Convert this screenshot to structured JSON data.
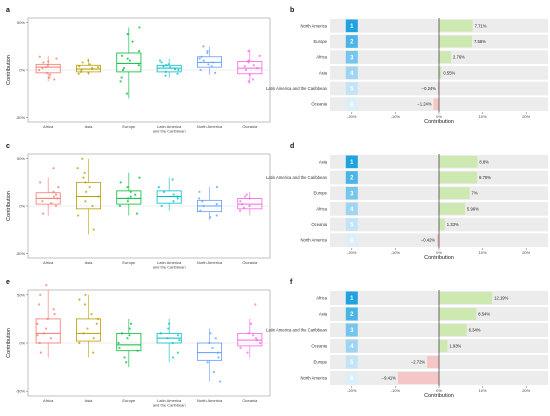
{
  "chart_data": [
    {
      "panel": "a",
      "type": "box",
      "ylabel": "Contribution",
      "yticks": [
        "50%",
        "0%",
        "-50%"
      ],
      "ylim": [
        -55,
        55
      ],
      "categories": [
        "Africa",
        "Asia",
        "Europe",
        "Latin America\nand the Caribbean",
        "North America",
        "Oceania"
      ],
      "boxes": [
        {
          "q1": -3,
          "median": 3,
          "q3": 6,
          "min": -12,
          "max": 15
        },
        {
          "q1": -2,
          "median": 1,
          "q3": 5,
          "min": -5,
          "max": 12
        },
        {
          "q1": -2,
          "median": 7,
          "q3": 18,
          "min": -30,
          "max": 45
        },
        {
          "q1": -2,
          "median": 2,
          "q3": 5,
          "min": -8,
          "max": 12
        },
        {
          "q1": 3,
          "median": 8,
          "q3": 14,
          "min": -5,
          "max": 25
        },
        {
          "q1": -4,
          "median": 2,
          "q3": 9,
          "min": -15,
          "max": 22
        }
      ],
      "points": [
        [
          5,
          -8,
          14,
          2,
          -3,
          9,
          0,
          12,
          -5,
          3,
          8,
          -10
        ],
        [
          1,
          4,
          -3,
          8,
          2,
          -2,
          6,
          10,
          0,
          -4,
          3
        ],
        [
          20,
          -12,
          38,
          5,
          15,
          -25,
          10,
          30,
          2,
          -8,
          45,
          12,
          0
        ],
        [
          3,
          -6,
          8,
          1,
          5,
          -2,
          10,
          0,
          4,
          -4,
          6
        ],
        [
          10,
          4,
          18,
          -3,
          8,
          14,
          25,
          6,
          0,
          12,
          20
        ],
        [
          5,
          -10,
          15,
          0,
          8,
          -5,
          20,
          2,
          -12,
          10,
          4
        ]
      ]
    },
    {
      "panel": "b",
      "type": "bar",
      "xlabel": "Contribution",
      "xticks": [
        "-20%",
        "-10%",
        "0%",
        "10%",
        "20%"
      ],
      "xlim": [
        -25,
        25
      ],
      "categories": [
        "North America",
        "Europe",
        "Africa",
        "Asia",
        "Latin America and the Caribbean",
        "Oceania"
      ],
      "ranks": [
        "1",
        "2",
        "3",
        "4",
        "5",
        "6"
      ],
      "values": [
        7.71,
        7.56,
        2.76,
        0.55,
        -0.24,
        -1.24
      ],
      "value_labels": [
        "7.71%",
        "7.56%",
        "2.76%",
        "0.55%",
        "−0.24%",
        "−1.24%"
      ]
    },
    {
      "panel": "c",
      "type": "box",
      "ylabel": "Contribution",
      "yticks": [
        "50%",
        "0%",
        "-50%"
      ],
      "ylim": [
        -55,
        55
      ],
      "categories": [
        "Africa",
        "Asia",
        "Europe",
        "Latin America\nand the Caribbean",
        "North America",
        "Oceania"
      ],
      "boxes": [
        {
          "q1": 2,
          "median": 8,
          "q3": 14,
          "min": -10,
          "max": 30
        },
        {
          "q1": -3,
          "median": 10,
          "q3": 25,
          "min": -30,
          "max": 50
        },
        {
          "q1": 2,
          "median": 8,
          "q3": 16,
          "min": -10,
          "max": 35
        },
        {
          "q1": 3,
          "median": 10,
          "q3": 16,
          "min": -5,
          "max": 30
        },
        {
          "q1": -6,
          "median": 0,
          "q3": 6,
          "min": -15,
          "max": 20
        },
        {
          "q1": -3,
          "median": 2,
          "q3": 8,
          "min": -10,
          "max": 15
        }
      ],
      "points": [
        [
          5,
          15,
          25,
          -8,
          10,
          0,
          20,
          8,
          12,
          40,
          3
        ],
        [
          20,
          -10,
          35,
          5,
          50,
          15,
          0,
          -25,
          30,
          10,
          40,
          25
        ],
        [
          10,
          20,
          0,
          30,
          5,
          -8,
          15,
          8,
          25,
          12
        ],
        [
          8,
          15,
          20,
          0,
          12,
          5,
          28,
          10
        ],
        [
          0,
          -10,
          5,
          15,
          -5,
          8,
          -12,
          2,
          20
        ],
        [
          2,
          8,
          -5,
          10,
          0,
          5,
          12,
          -2
        ]
      ]
    },
    {
      "panel": "d",
      "type": "bar",
      "xlabel": "Contribution",
      "xticks": [
        "-20%",
        "-10%",
        "0%",
        "10%",
        "20%"
      ],
      "xlim": [
        -25,
        25
      ],
      "categories": [
        "Asia",
        "Latin America and the Caribbean",
        "Europe",
        "Africa",
        "Oceania",
        "North America"
      ],
      "ranks": [
        "1",
        "2",
        "3",
        "4",
        "5",
        "6"
      ],
      "values": [
        8.8,
        8.75,
        7.0,
        5.96,
        1.33,
        -0.42
      ],
      "value_labels": [
        "8.8%",
        "8.75%",
        "7%",
        "5.96%",
        "1.33%",
        "−0.42%"
      ]
    },
    {
      "panel": "e",
      "type": "box",
      "ylabel": "Contribution",
      "yticks": [
        "50%",
        "0%",
        "-50%"
      ],
      "ylim": [
        -55,
        55
      ],
      "categories": [
        "Africa",
        "Asia",
        "Europe",
        "Latin America\nand the Caribbean",
        "North America",
        "Oceania"
      ],
      "boxes": [
        {
          "q1": 0,
          "median": 10,
          "q3": 25,
          "min": -15,
          "max": 55
        },
        {
          "q1": 2,
          "median": 10,
          "q3": 25,
          "min": -15,
          "max": 50
        },
        {
          "q1": -8,
          "median": -2,
          "q3": 10,
          "min": -25,
          "max": 25
        },
        {
          "q1": 0,
          "median": 5,
          "q3": 10,
          "min": -20,
          "max": 25
        },
        {
          "q1": -18,
          "median": -10,
          "q3": 0,
          "min": -40,
          "max": 15
        },
        {
          "q1": -3,
          "median": 3,
          "q3": 10,
          "min": -15,
          "max": 25
        }
      ],
      "points": [
        [
          10,
          30,
          50,
          -10,
          20,
          5,
          40,
          15,
          0,
          25,
          60,
          8,
          35
        ],
        [
          15,
          5,
          40,
          25,
          -10,
          30,
          10,
          50,
          0,
          20,
          45
        ],
        [
          -5,
          10,
          -15,
          0,
          20,
          5,
          -20,
          15,
          -8,
          8
        ],
        [
          5,
          10,
          -10,
          0,
          20,
          8,
          -15,
          15,
          3
        ],
        [
          -10,
          -20,
          0,
          -30,
          5,
          -15,
          10,
          -40,
          -5
        ],
        [
          3,
          10,
          -5,
          0,
          20,
          8,
          -10,
          40,
          5
        ]
      ]
    },
    {
      "panel": "f",
      "type": "bar",
      "xlabel": "Contribution",
      "xticks": [
        "-20%",
        "-10%",
        "0%",
        "10%",
        "20%"
      ],
      "xlim": [
        -25,
        25
      ],
      "categories": [
        "Africa",
        "Asia",
        "Latin America and the Caribbean",
        "Oceania",
        "Europe",
        "North America"
      ],
      "ranks": [
        "1",
        "2",
        "3",
        "4",
        "5",
        "6"
      ],
      "values": [
        12.19,
        8.54,
        6.34,
        1.93,
        -2.72,
        -9.41
      ],
      "value_labels": [
        "12.19%",
        "8.54%",
        "6.34%",
        "1.93%",
        "−2.72%",
        "−9.41%"
      ]
    }
  ],
  "colors": {
    "groups": [
      "#f8766d",
      "#b79f00",
      "#00ba38",
      "#00bfc4",
      "#619cff",
      "#f564e3"
    ],
    "positive_bar": "#cde8b0",
    "negative_bar": "#f5c6c6",
    "row_bg": "#ececec",
    "zero_line": "#333333",
    "panel_border": "#999999",
    "rank_colors": [
      "#1fa3e0",
      "#4ab4e6",
      "#75c5ec",
      "#9fd5f2",
      "#c3e4f6",
      "#dceff9"
    ]
  }
}
